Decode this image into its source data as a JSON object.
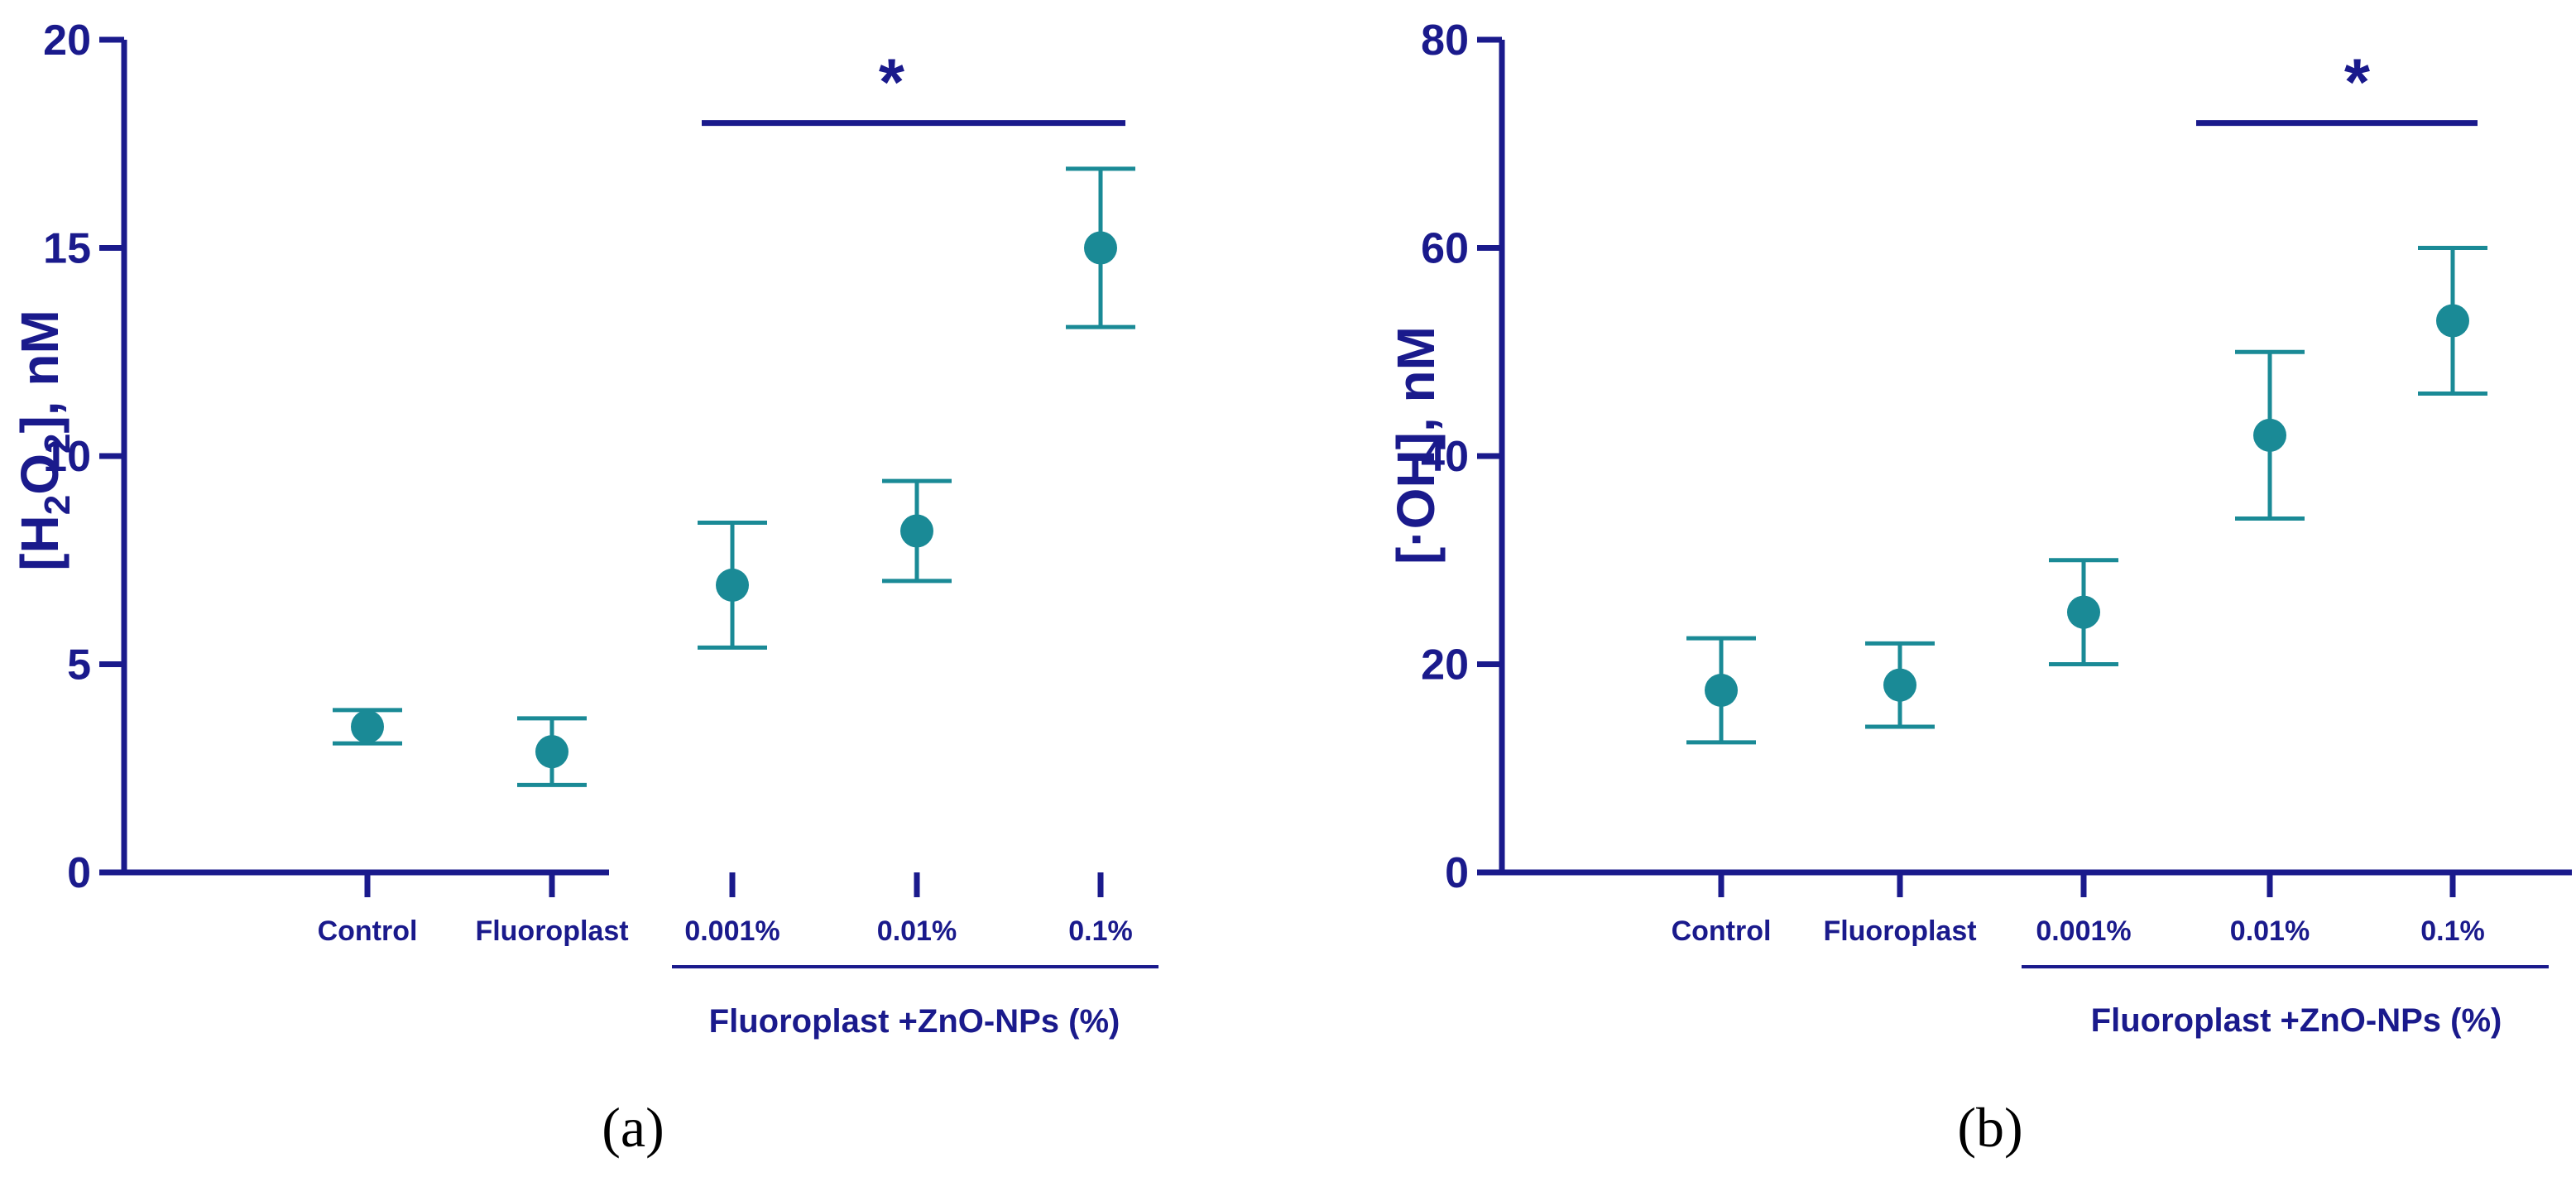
{
  "colors": {
    "axis": "#1a1a8c",
    "marker": "#1a8a96"
  },
  "chart_data": [
    {
      "type": "scatter",
      "panel_label": "(a)",
      "ylabel": {
        "open": "[H",
        "sub1": "2",
        "mid": "O",
        "sub2": "2",
        "close": "], nM"
      },
      "ylim": [
        0,
        20
      ],
      "yticks": [
        0,
        5,
        10,
        15,
        20
      ],
      "categories": [
        "Control",
        "Fluoroplast",
        "0.001%",
        "0.01%",
        "0.1%"
      ],
      "group_label": "Fluoroplast +ZnO-NPs (%)",
      "group_range": [
        2,
        4
      ],
      "values": [
        3.5,
        2.9,
        6.9,
        8.2,
        15.0
      ],
      "err_low": [
        3.1,
        2.1,
        5.4,
        7.0,
        13.1
      ],
      "err_high": [
        3.9,
        3.7,
        8.4,
        9.4,
        16.9
      ],
      "significance": {
        "label": "*",
        "from": 2,
        "to": 4,
        "y": 18
      },
      "grid": false
    },
    {
      "type": "scatter",
      "panel_label": "(b)",
      "ylabel": {
        "text": "[·OH], nM"
      },
      "ylim": [
        0,
        80
      ],
      "yticks": [
        0,
        20,
        40,
        60,
        80
      ],
      "categories": [
        "Control",
        "Fluoroplast",
        "0.001%",
        "0.01%",
        "0.1%"
      ],
      "group_label": "Fluoroplast +ZnO-NPs (%)",
      "group_range": [
        2,
        4
      ],
      "values": [
        17.5,
        18,
        25,
        42,
        53
      ],
      "err_low": [
        12.5,
        14,
        20,
        34,
        46
      ],
      "err_high": [
        22.5,
        22,
        30,
        50,
        60
      ],
      "significance": {
        "label": "*",
        "from": 3,
        "to": 4,
        "y": 72
      },
      "grid": false
    }
  ]
}
